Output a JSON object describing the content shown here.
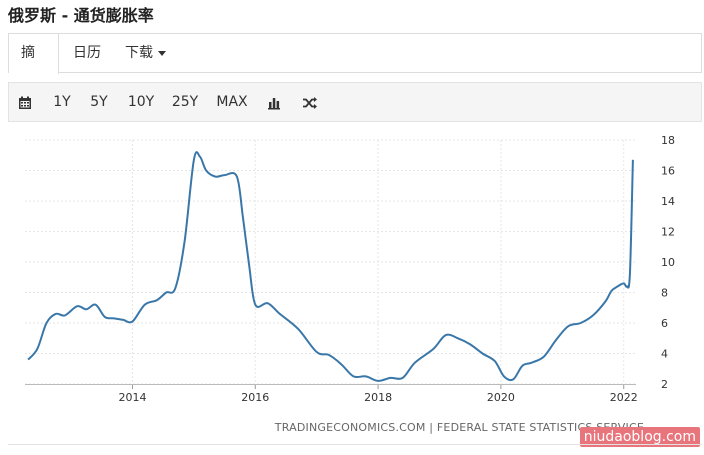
{
  "page": {
    "title": "俄罗斯 - 通货膨胀率"
  },
  "tabs": [
    {
      "label": "摘要",
      "active": true
    },
    {
      "label": "日历",
      "active": false
    },
    {
      "label": "下载",
      "active": false
    }
  ],
  "toolbar": {
    "buttons": [
      "1Y",
      "5Y",
      "10Y",
      "25Y",
      "MAX"
    ],
    "icons": [
      "calendar-icon",
      "bar-chart-icon",
      "shuffle-icon"
    ]
  },
  "chart_data": {
    "type": "line",
    "title": "",
    "xlabel": "",
    "ylabel": "",
    "xlim": [
      2012.25,
      2022.2
    ],
    "ylim": [
      2,
      18
    ],
    "x_ticks": [
      2014,
      2016,
      2018,
      2020,
      2022
    ],
    "x_tick_labels": [
      "2014",
      "2016",
      "2018",
      "2020",
      "2022"
    ],
    "y_ticks": [
      2,
      4,
      6,
      8,
      10,
      12,
      14,
      16,
      18
    ],
    "y_tick_labels": [
      "2",
      "4",
      "6",
      "8",
      "10",
      "12",
      "14",
      "16",
      "18"
    ],
    "grid": true,
    "y_axis_position": "right",
    "line_color": "#3a77a9",
    "series": [
      {
        "x": [
          2012.3,
          2012.45,
          2012.6,
          2012.75,
          2012.9,
          2013.1,
          2013.25,
          2013.4,
          2013.55,
          2013.7,
          2013.85,
          2014.0,
          2014.2,
          2014.4,
          2014.55,
          2014.7,
          2014.85,
          2015.0,
          2015.1,
          2015.2,
          2015.35,
          2015.5,
          2015.7,
          2015.8,
          2015.9,
          2016.0,
          2016.2,
          2016.4,
          2016.7,
          2017.0,
          2017.2,
          2017.4,
          2017.6,
          2017.8,
          2018.0,
          2018.2,
          2018.4,
          2018.6,
          2018.9,
          2019.1,
          2019.3,
          2019.5,
          2019.7,
          2019.9,
          2020.05,
          2020.2,
          2020.35,
          2020.5,
          2020.7,
          2020.9,
          2021.1,
          2021.3,
          2021.5,
          2021.7,
          2021.8,
          2021.9,
          2022.0,
          2022.05,
          2022.1,
          2022.15
        ],
        "y": [
          3.6,
          4.3,
          6.0,
          6.6,
          6.5,
          7.1,
          6.9,
          7.2,
          6.4,
          6.3,
          6.2,
          6.1,
          7.2,
          7.5,
          8.0,
          8.3,
          11.4,
          16.7,
          16.9,
          16.0,
          15.6,
          15.7,
          15.6,
          12.9,
          9.8,
          7.2,
          7.3,
          6.6,
          5.6,
          4.1,
          3.9,
          3.3,
          2.5,
          2.5,
          2.2,
          2.4,
          2.4,
          3.4,
          4.3,
          5.2,
          5.0,
          4.6,
          4.0,
          3.5,
          2.5,
          2.3,
          3.2,
          3.4,
          3.8,
          4.9,
          5.8,
          6.0,
          6.5,
          7.4,
          8.1,
          8.4,
          8.6,
          8.4,
          9.2,
          16.7
        ]
      }
    ],
    "source": "TRADINGECONOMICS.COM | FEDERAL STATE STATISTICS SERVICE"
  },
  "watermark": "niudaoblog.com"
}
